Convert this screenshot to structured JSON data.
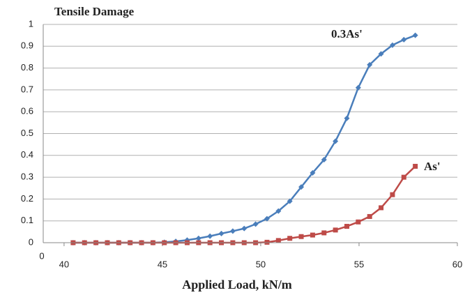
{
  "chart_data": {
    "type": "line",
    "title": "Tensile Damage",
    "x_label": "Applied Load, kN/m",
    "x_origin_label": "0",
    "x": [
      40.46,
      41.04,
      41.62,
      42.2,
      42.78,
      43.36,
      43.94,
      44.52,
      45.1,
      45.68,
      46.26,
      46.84,
      47.42,
      48,
      48.58,
      49.16,
      49.74,
      50.32,
      50.9,
      51.48,
      52.06,
      52.64,
      53.22,
      53.8,
      54.38,
      54.96,
      55.54,
      56.12,
      56.7,
      57.28,
      57.86
    ],
    "series": [
      {
        "name": "0.3As'",
        "color": "#4a7ebb",
        "marker": "diamond",
        "values": [
          0,
          0,
          0,
          0,
          0,
          0,
          0,
          0,
          0.002,
          0.006,
          0.012,
          0.02,
          0.03,
          0.042,
          0.053,
          0.065,
          0.085,
          0.11,
          0.145,
          0.19,
          0.255,
          0.32,
          0.38,
          0.465,
          0.57,
          0.71,
          0.815,
          0.865,
          0.905,
          0.93,
          0.95
        ]
      },
      {
        "name": "As'",
        "color": "#be4b48",
        "marker": "square",
        "values": [
          0,
          0,
          0,
          0,
          0,
          0,
          0,
          0,
          0,
          0,
          0,
          0,
          0,
          0,
          0,
          0,
          0,
          0.002,
          0.01,
          0.02,
          0.028,
          0.035,
          0.045,
          0.058,
          0.075,
          0.095,
          0.12,
          0.16,
          0.22,
          0.3,
          0.35
        ]
      }
    ],
    "xlim": [
      38.94,
      60
    ],
    "xticks": [
      40,
      45,
      50,
      55,
      60
    ],
    "ylim": [
      0,
      1
    ],
    "yticks": [
      0,
      0.1,
      0.2,
      0.3,
      0.4,
      0.5,
      0.6,
      0.7,
      0.8,
      0.9,
      1
    ],
    "grid": true
  }
}
